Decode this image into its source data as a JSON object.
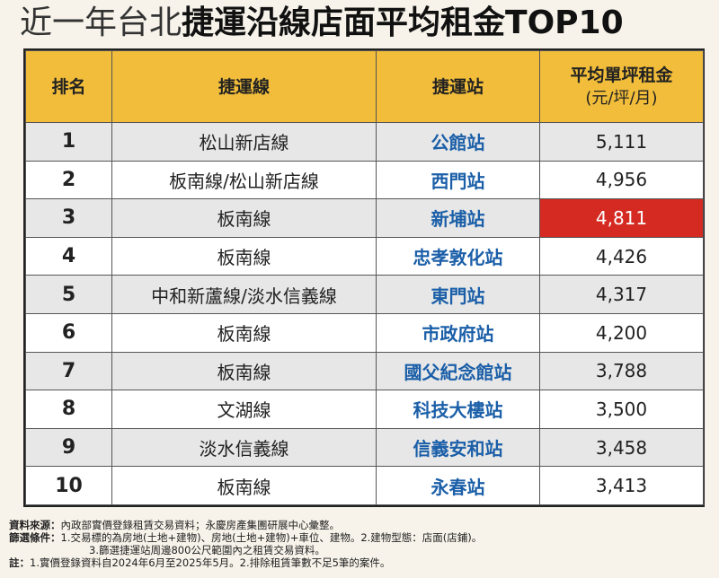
{
  "title": {
    "light": "近一年台北",
    "bold": "捷運沿線店面平均租金TOP10"
  },
  "colors": {
    "header_bg": "#f1bd3a",
    "station_text": "#1b5fa8",
    "highlight_bg": "#d42a22",
    "row_alt_bg": "#e7e7e7"
  },
  "chart_data": {
    "type": "table",
    "title": "近一年台北捷運沿線店面平均租金TOP10",
    "columns": [
      "排名",
      "捷運線",
      "捷運站",
      "平均單坪租金",
      "(元/坪/月)"
    ],
    "rows": [
      {
        "rank": "1",
        "line": "松山新店線",
        "station": "公館站",
        "rent": "5,111",
        "rent_value": 5111
      },
      {
        "rank": "2",
        "line": "板南線/松山新店線",
        "station": "西門站",
        "rent": "4,956",
        "rent_value": 4956
      },
      {
        "rank": "3",
        "line": "板南線",
        "station": "新埔站",
        "rent": "4,811",
        "rent_value": 4811,
        "highlight": true
      },
      {
        "rank": "4",
        "line": "板南線",
        "station": "忠孝敦化站",
        "rent": "4,426",
        "rent_value": 4426
      },
      {
        "rank": "5",
        "line": "中和新蘆線/淡水信義線",
        "station": "東門站",
        "rent": "4,317",
        "rent_value": 4317
      },
      {
        "rank": "6",
        "line": "板南線",
        "station": "市政府站",
        "rent": "4,200",
        "rent_value": 4200
      },
      {
        "rank": "7",
        "line": "板南線",
        "station": "國父紀念館站",
        "rent": "3,788",
        "rent_value": 3788
      },
      {
        "rank": "8",
        "line": "文湖線",
        "station": "科技大樓站",
        "rent": "3,500",
        "rent_value": 3500
      },
      {
        "rank": "9",
        "line": "淡水信義線",
        "station": "信義安和站",
        "rent": "3,458",
        "rent_value": 3458
      },
      {
        "rank": "10",
        "line": "板南線",
        "station": "永春站",
        "rent": "3,413",
        "rent_value": 3413
      }
    ]
  },
  "notes": {
    "source_label": "資料來源：",
    "source_text": "內政部實價登錄租賃交易資料；永慶房產集團研展中心彙整。",
    "criteria_label": "篩選條件：",
    "criteria_line1": "1.交易標的為房地(土地+建物)、房地(土地+建物)+車位、建物。2.建物型態：店面(店鋪)。",
    "criteria_line2": "3.篩選捷運站周邊800公尺範圍內之租賃交易資料。",
    "footnote_label": "註：",
    "footnote_text": "1.實價登錄資料自2024年6月至2025年5月。2.排除租賃筆數不足5筆的案件。"
  }
}
